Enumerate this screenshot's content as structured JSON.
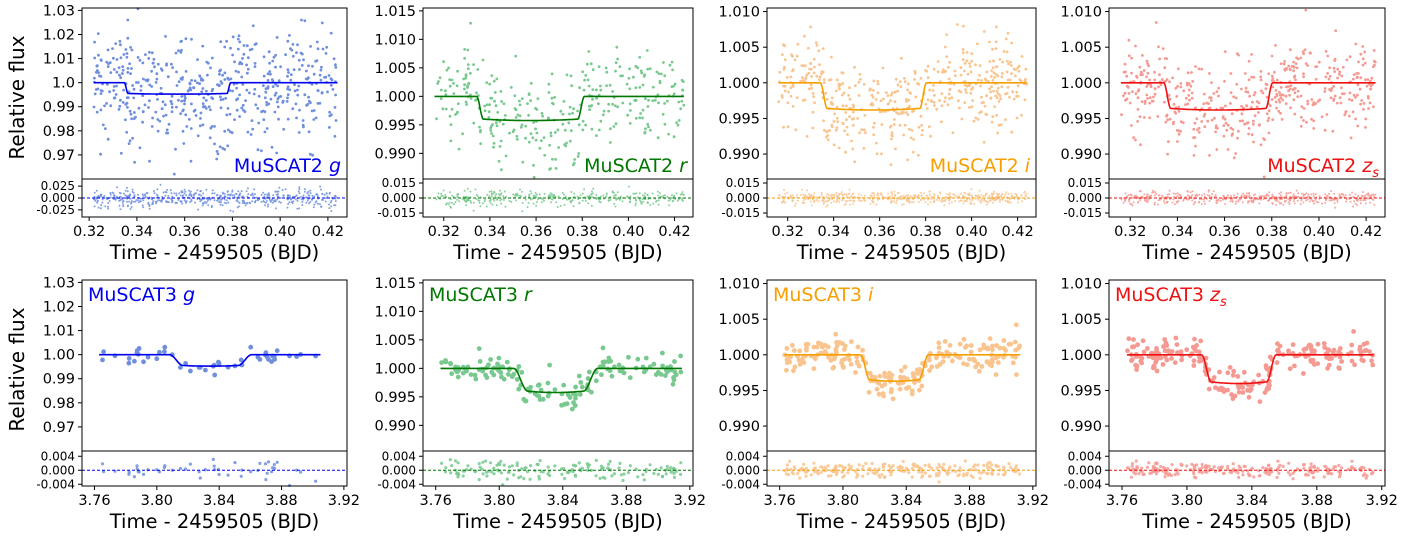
{
  "chart_data": [
    {
      "type": "scatter",
      "label": "MuSCAT2",
      "band": "g",
      "color": "#0000ee",
      "dot_color": "#6f8fdd",
      "xlabel": "Time - 2459505 (BJD)",
      "ylabel": "Relative flux",
      "xlim": [
        0.317,
        0.428
      ],
      "xticks": [
        0.32,
        0.34,
        0.36,
        0.38,
        0.4,
        0.42
      ],
      "xtick_labels": [
        "0.32",
        "0.34",
        "0.36",
        "0.38",
        "0.40",
        "0.42"
      ],
      "ylim": [
        0.96,
        1.031
      ],
      "yticks": [
        0.97,
        0.98,
        0.99,
        1.0,
        1.01,
        1.02,
        1.03
      ],
      "ytick_labels": [
        "0.97",
        "0.98",
        "0.99",
        "1.0",
        "1.01",
        "1.02",
        "1.03"
      ],
      "res_ylim": [
        -0.04,
        0.04
      ],
      "res_yticks": [
        0.025,
        0.0,
        -0.025
      ],
      "res_ytick_labels": [
        "0.025",
        "0.000",
        "-0.025"
      ],
      "model": {
        "x1": 0.3347,
        "x2": 0.3363,
        "x3": 0.3777,
        "x4": 0.3793,
        "depth": 0.0045
      },
      "n_points": 520,
      "scatter_sd": 0.012,
      "res_sd": 0.01,
      "x_range": [
        0.322,
        0.424
      ]
    },
    {
      "type": "scatter",
      "label": "MuSCAT2",
      "band": "r",
      "color": "#007700",
      "dot_color": "#78c98f",
      "xlabel": "Time - 2459505 (BJD)",
      "ylabel": "",
      "xlim": [
        0.311,
        0.428
      ],
      "xticks": [
        0.32,
        0.34,
        0.36,
        0.38,
        0.4,
        0.42
      ],
      "xtick_labels": [
        "0.32",
        "0.34",
        "0.36",
        "0.38",
        "0.40",
        "0.42"
      ],
      "ylim": [
        0.9855,
        1.0155
      ],
      "yticks": [
        0.99,
        0.995,
        1.0,
        1.005,
        1.01,
        1.015
      ],
      "ytick_labels": [
        "0.990",
        "0.995",
        "1.000",
        "1.005",
        "1.010",
        "1.015"
      ],
      "res_ylim": [
        -0.019,
        0.019
      ],
      "res_yticks": [
        0.015,
        0.0,
        -0.015
      ],
      "res_ytick_labels": [
        "0.015",
        "0.000",
        "-0.015"
      ],
      "model": {
        "x1": 0.3342,
        "x2": 0.3372,
        "x3": 0.378,
        "x4": 0.381,
        "depth": 0.004
      },
      "n_points": 340,
      "scatter_sd": 0.004,
      "res_sd": 0.004,
      "x_range": [
        0.316,
        0.424
      ]
    },
    {
      "type": "scatter",
      "label": "MuSCAT2",
      "band": "i",
      "color": "#f5a000",
      "dot_color": "#f9c48e",
      "xlabel": "Time - 2459505 (BJD)",
      "ylabel": "",
      "xlim": [
        0.311,
        0.428
      ],
      "xticks": [
        0.32,
        0.34,
        0.36,
        0.38,
        0.4,
        0.42
      ],
      "xtick_labels": [
        "0.32",
        "0.34",
        "0.36",
        "0.38",
        "0.40",
        "0.42"
      ],
      "ylim": [
        0.9865,
        1.0105
      ],
      "yticks": [
        0.99,
        0.995,
        1.0,
        1.005,
        1.01
      ],
      "ytick_labels": [
        "0.990",
        "0.995",
        "1.000",
        "1.005",
        "1.010"
      ],
      "res_ylim": [
        -0.019,
        0.019
      ],
      "res_yticks": [
        0.015,
        0.0,
        -0.015
      ],
      "res_ytick_labels": [
        "0.015",
        "0.000",
        "-0.015"
      ],
      "model": {
        "x1": 0.3342,
        "x2": 0.3372,
        "x3": 0.3774,
        "x4": 0.3804,
        "depth": 0.0036
      },
      "n_points": 480,
      "scatter_sd": 0.003,
      "res_sd": 0.003,
      "x_range": [
        0.316,
        0.424
      ]
    },
    {
      "type": "scatter",
      "label": "MuSCAT2",
      "band": "z_s",
      "color": "#ee1111",
      "dot_color": "#f59a93",
      "xlabel": "Time - 2459505 (BJD)",
      "ylabel": "",
      "xlim": [
        0.311,
        0.428
      ],
      "xticks": [
        0.32,
        0.34,
        0.36,
        0.38,
        0.4,
        0.42
      ],
      "xtick_labels": [
        "0.32",
        "0.34",
        "0.36",
        "0.38",
        "0.40",
        "0.42"
      ],
      "ylim": [
        0.9865,
        1.0105
      ],
      "yticks": [
        0.99,
        0.995,
        1.0,
        1.005,
        1.01
      ],
      "ytick_labels": [
        "0.990",
        "0.995",
        "1.000",
        "1.005",
        "1.010"
      ],
      "res_ylim": [
        -0.019,
        0.019
      ],
      "res_yticks": [
        0.015,
        0.0,
        -0.015
      ],
      "res_ytick_labels": [
        "0.015",
        "0.000",
        "-0.015"
      ],
      "model": {
        "x1": 0.3342,
        "x2": 0.3372,
        "x3": 0.3774,
        "x4": 0.3804,
        "depth": 0.0036
      },
      "n_points": 480,
      "scatter_sd": 0.003,
      "res_sd": 0.003,
      "x_range": [
        0.316,
        0.424
      ]
    },
    {
      "type": "scatter",
      "label": "MuSCAT3",
      "band": "g",
      "color": "#0000ee",
      "dot_color": "#6f8fdd",
      "xlabel": "Time - 2459505 (BJD)",
      "ylabel": "Relative flux",
      "xlim": [
        3.752,
        3.922
      ],
      "xticks": [
        3.76,
        3.8,
        3.84,
        3.88,
        3.92
      ],
      "xtick_labels": [
        "3.76",
        "3.80",
        "3.84",
        "3.88",
        "3.92"
      ],
      "ylim": [
        0.96,
        1.031
      ],
      "yticks": [
        0.97,
        0.98,
        0.99,
        1.0,
        1.01,
        1.02,
        1.03
      ],
      "ytick_labels": [
        "0.97",
        "0.98",
        "0.99",
        "1.00",
        "1.01",
        "1.02",
        "1.03"
      ],
      "res_ylim": [
        -0.0045,
        0.0055
      ],
      "res_yticks": [
        0.004,
        0.0,
        -0.004
      ],
      "res_ytick_labels": [
        "0.004",
        "0.000",
        "-0.004"
      ],
      "model": {
        "x1": 3.808,
        "x2": 3.817,
        "x3": 3.852,
        "x4": 3.861,
        "depth": 0.0045
      },
      "n_points": 48,
      "scatter_sd": 0.0018,
      "res_sd": 0.0015,
      "x_range": [
        3.763,
        3.905
      ]
    },
    {
      "type": "scatter",
      "label": "MuSCAT3",
      "band": "r",
      "color": "#007700",
      "dot_color": "#78c98f",
      "xlabel": "Time - 2459505 (BJD)",
      "ylabel": "",
      "xlim": [
        3.752,
        3.922
      ],
      "xticks": [
        3.76,
        3.8,
        3.84,
        3.88,
        3.92
      ],
      "xtick_labels": [
        "3.76",
        "3.80",
        "3.84",
        "3.88",
        "3.92"
      ],
      "ylim": [
        0.9855,
        1.0155
      ],
      "yticks": [
        0.99,
        0.995,
        1.0,
        1.005,
        1.01,
        1.015
      ],
      "ytick_labels": [
        "0.990",
        "0.995",
        "1.000",
        "1.005",
        "1.010",
        "1.015"
      ],
      "res_ylim": [
        -0.0045,
        0.0055
      ],
      "res_yticks": [
        0.004,
        0.0,
        -0.004
      ],
      "res_ytick_labels": [
        "0.004",
        "0.000",
        "-0.004"
      ],
      "model": {
        "x1": 3.809,
        "x2": 3.818,
        "x3": 3.853,
        "x4": 3.862,
        "depth": 0.004
      },
      "n_points": 150,
      "scatter_sd": 0.0014,
      "res_sd": 0.0014,
      "x_range": [
        3.763,
        3.915
      ]
    },
    {
      "type": "scatter",
      "label": "MuSCAT3",
      "band": "i",
      "color": "#f5a000",
      "dot_color": "#f9c48e",
      "xlabel": "Time - 2459505 (BJD)",
      "ylabel": "",
      "xlim": [
        3.752,
        3.922
      ],
      "xticks": [
        3.76,
        3.8,
        3.84,
        3.88,
        3.92
      ],
      "xtick_labels": [
        "3.76",
        "3.80",
        "3.84",
        "3.88",
        "3.92"
      ],
      "ylim": [
        0.9865,
        1.0105
      ],
      "yticks": [
        0.99,
        0.995,
        1.0,
        1.005,
        1.01
      ],
      "ytick_labels": [
        "0.990",
        "0.995",
        "1.000",
        "1.005",
        "1.010"
      ],
      "res_ylim": [
        -0.0045,
        0.0055
      ],
      "res_yticks": [
        0.004,
        0.0,
        -0.004
      ],
      "res_ytick_labels": [
        "0.004",
        "0.000",
        "-0.004"
      ],
      "model": {
        "x1": 3.811,
        "x2": 3.817,
        "x3": 3.848,
        "x4": 3.854,
        "depth": 0.0035
      },
      "n_points": 220,
      "scatter_sd": 0.0011,
      "res_sd": 0.0011,
      "x_range": [
        3.763,
        3.912
      ]
    },
    {
      "type": "scatter",
      "label": "MuSCAT3",
      "band": "z_s",
      "color": "#ee1111",
      "dot_color": "#f59a93",
      "xlabel": "Time - 2459505 (BJD)",
      "ylabel": "",
      "xlim": [
        3.752,
        3.922
      ],
      "xticks": [
        3.76,
        3.8,
        3.84,
        3.88,
        3.92
      ],
      "xtick_labels": [
        "3.76",
        "3.80",
        "3.84",
        "3.88",
        "3.92"
      ],
      "ylim": [
        0.9865,
        1.0105
      ],
      "yticks": [
        0.99,
        0.995,
        1.0,
        1.005,
        1.01
      ],
      "ytick_labels": [
        "0.990",
        "0.995",
        "1.000",
        "1.005",
        "1.010"
      ],
      "res_ylim": [
        -0.0045,
        0.0055
      ],
      "res_yticks": [
        0.004,
        0.0,
        -0.004
      ],
      "res_ytick_labels": [
        "0.004",
        "0.000",
        "-0.004"
      ],
      "model": {
        "x1": 3.809,
        "x2": 3.815,
        "x3": 3.849,
        "x4": 3.855,
        "depth": 0.0038
      },
      "n_points": 230,
      "scatter_sd": 0.0011,
      "res_sd": 0.0011,
      "x_range": [
        3.763,
        3.915
      ]
    }
  ]
}
